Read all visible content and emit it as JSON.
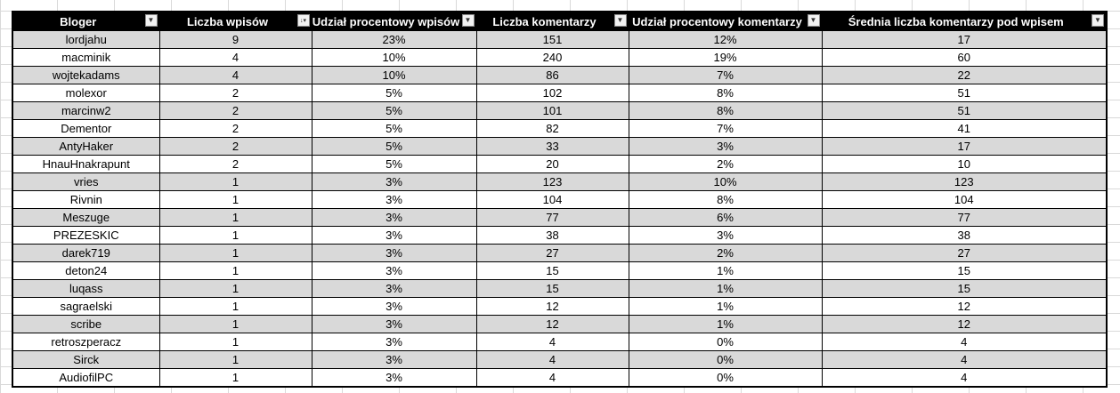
{
  "headers": [
    {
      "label": "Bloger",
      "filter_icon": "dropdown-arrow-icon"
    },
    {
      "label": "Liczba wpisów",
      "filter_icon": "sort-descending-icon"
    },
    {
      "label": "Udział procentowy wpisów",
      "filter_icon": "dropdown-arrow-icon"
    },
    {
      "label": "Liczba komentarzy",
      "filter_icon": "dropdown-arrow-icon"
    },
    {
      "label": "Udział procentowy komentarzy",
      "filter_icon": "dropdown-arrow-icon"
    },
    {
      "label": "Średnia liczba komentarzy pod wpisem",
      "filter_icon": "dropdown-arrow-icon"
    }
  ],
  "rows": [
    [
      "lordjahu",
      "9",
      "23%",
      "151",
      "12%",
      "17"
    ],
    [
      "macminik",
      "4",
      "10%",
      "240",
      "19%",
      "60"
    ],
    [
      "wojtekadams",
      "4",
      "10%",
      "86",
      "7%",
      "22"
    ],
    [
      "molexor",
      "2",
      "5%",
      "102",
      "8%",
      "51"
    ],
    [
      "marcinw2",
      "2",
      "5%",
      "101",
      "8%",
      "51"
    ],
    [
      "Dementor",
      "2",
      "5%",
      "82",
      "7%",
      "41"
    ],
    [
      "AntyHaker",
      "2",
      "5%",
      "33",
      "3%",
      "17"
    ],
    [
      "HnauHnakrapunt",
      "2",
      "5%",
      "20",
      "2%",
      "10"
    ],
    [
      "vries",
      "1",
      "3%",
      "123",
      "10%",
      "123"
    ],
    [
      "Rivnin",
      "1",
      "3%",
      "104",
      "8%",
      "104"
    ],
    [
      "Meszuge",
      "1",
      "3%",
      "77",
      "6%",
      "77"
    ],
    [
      "PREZESKIC",
      "1",
      "3%",
      "38",
      "3%",
      "38"
    ],
    [
      "darek719",
      "1",
      "3%",
      "27",
      "2%",
      "27"
    ],
    [
      "deton24",
      "1",
      "3%",
      "15",
      "1%",
      "15"
    ],
    [
      "luqass",
      "1",
      "3%",
      "15",
      "1%",
      "15"
    ],
    [
      "sagraelski",
      "1",
      "3%",
      "12",
      "1%",
      "12"
    ],
    [
      "scribe",
      "1",
      "3%",
      "12",
      "1%",
      "12"
    ],
    [
      "retroszperacz",
      "1",
      "3%",
      "4",
      "0%",
      "4"
    ],
    [
      "Sirck",
      "1",
      "3%",
      "4",
      "0%",
      "4"
    ],
    [
      "AudiofilPC",
      "1",
      "3%",
      "4",
      "0%",
      "4"
    ]
  ],
  "colors": {
    "header_bg": "#000000",
    "band": "#d9d9d9",
    "grid": "#d9d9d9"
  }
}
